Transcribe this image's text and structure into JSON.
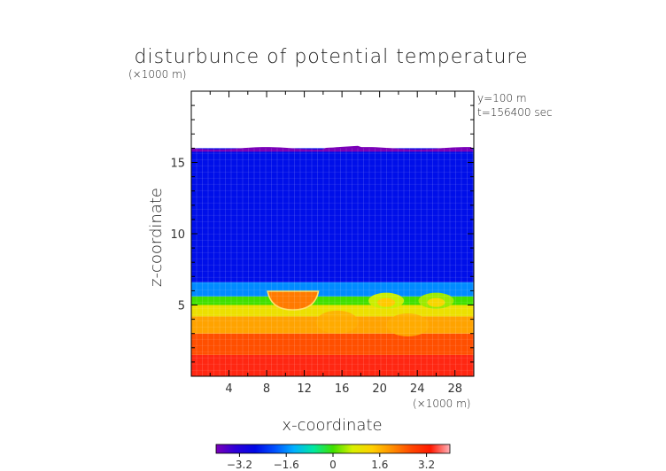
{
  "chart_data": {
    "type": "heatmap",
    "title": "disturbunce of potential temperature",
    "xlabel": "x-coordinate",
    "ylabel": "z-coordinate",
    "x_scale_note": "(×1000 m)",
    "z_scale_note": "(×1000 m)",
    "annotations": [
      "y=100 m",
      "t=156400 sec"
    ],
    "xlim": [
      0,
      30
    ],
    "ylim": [
      0,
      20
    ],
    "x_ticks": [
      4,
      8,
      12,
      16,
      20,
      24,
      28
    ],
    "x_tick_labels": [
      "4",
      "8",
      "12",
      "16",
      "20",
      "24",
      "28"
    ],
    "y_ticks": [
      5,
      10,
      15
    ],
    "y_tick_labels": [
      "5",
      "10",
      "15"
    ],
    "colorbar": {
      "range": [
        -4,
        4
      ],
      "ticks": [
        -3.2,
        -1.6,
        0,
        1.6,
        3.2
      ],
      "tick_labels": [
        "−3.2",
        "−1.6",
        "0",
        "1.6",
        "3.2"
      ]
    },
    "field_top_z": 16.0,
    "layers": [
      {
        "z_from": 0,
        "z_to": 1.5,
        "value": 3.4
      },
      {
        "z_from": 1.5,
        "z_to": 3.0,
        "value": 2.6
      },
      {
        "z_from": 3.0,
        "z_to": 4.2,
        "value": 1.8
      },
      {
        "z_from": 4.2,
        "z_to": 5.0,
        "value": 1.0
      },
      {
        "z_from": 5.0,
        "z_to": 5.6,
        "value": 0.0
      },
      {
        "z_from": 5.6,
        "z_to": 6.6,
        "value": -1.6
      },
      {
        "z_from": 6.6,
        "z_to": 16.0,
        "value": -2.6
      }
    ],
    "features": [
      {
        "kind": "warm-cap",
        "x_center": 10.8,
        "z_center": 5.4,
        "value": 2.2
      },
      {
        "kind": "green-blob",
        "x_center": 20.7,
        "z_center": 5.3,
        "value": 0.6
      },
      {
        "kind": "green-blob",
        "x_center": 26.0,
        "z_center": 5.3,
        "value": 0.4
      },
      {
        "kind": "cool-dip",
        "x_center": 15.5,
        "z_center": 3.8,
        "value": 1.2
      },
      {
        "kind": "cool-dip",
        "x_center": 23.0,
        "z_center": 3.6,
        "value": 1.2
      }
    ]
  },
  "colors": {
    "colormap": [
      "#7a00b8",
      "#2d00d8",
      "#0008e6",
      "#0050ff",
      "#00b0ff",
      "#00e8a0",
      "#40e000",
      "#d8f000",
      "#ffd000",
      "#ff9000",
      "#ff4800",
      "#ff1800",
      "#ffb0b8"
    ],
    "frame": "#000000",
    "text": "#222222"
  }
}
